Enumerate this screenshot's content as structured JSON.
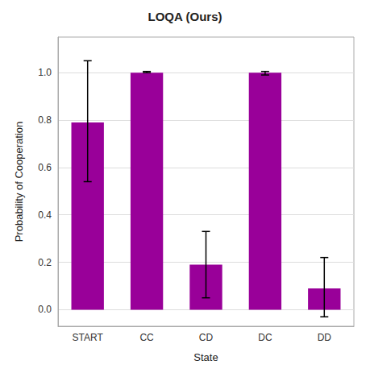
{
  "chart_data": {
    "type": "bar",
    "title": "LOQA (Ours)",
    "xlabel": "State",
    "ylabel": "Probability of Cooperation",
    "categories": [
      "START",
      "CC",
      "CD",
      "DC",
      "DD"
    ],
    "values": [
      0.79,
      1.0,
      0.19,
      1.0,
      0.09
    ],
    "yerr_lower": [
      0.25,
      0.0,
      0.14,
      0.01,
      0.12
    ],
    "yerr_upper": [
      0.26,
      0.005,
      0.14,
      0.005,
      0.13
    ],
    "color": "#990099",
    "ylim": [
      -0.07,
      1.15
    ],
    "yticks": [
      {
        "value": 0,
        "label": "0.0"
      },
      0.2,
      0.4,
      0.6,
      0.8,
      {
        "value": 1,
        "label": "1.0"
      }
    ],
    "grid": true
  }
}
